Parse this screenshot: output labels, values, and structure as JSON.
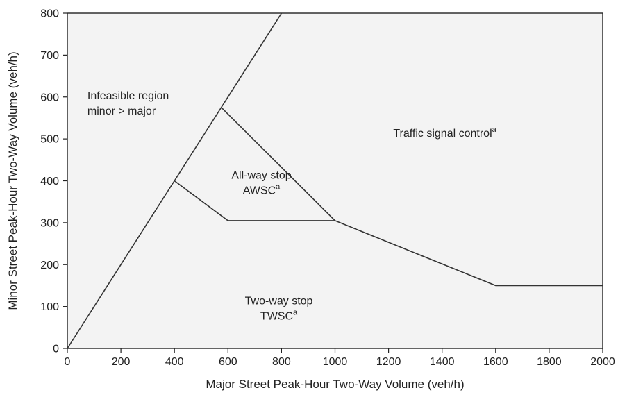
{
  "chart_data": {
    "type": "line",
    "xlabel": "Major Street Peak-Hour Two-Way Volume (veh/h)",
    "ylabel": "Minor Street Peak-Hour Two-Way Volume (veh/h)",
    "xlim": [
      0,
      2000
    ],
    "ylim": [
      0,
      800
    ],
    "x_ticks": [
      0,
      200,
      400,
      600,
      800,
      1000,
      1200,
      1400,
      1600,
      1800,
      2000
    ],
    "y_ticks": [
      0,
      100,
      200,
      300,
      400,
      500,
      600,
      700,
      800
    ],
    "grid": false,
    "plot_background": "#f3f3f3",
    "line_color": "#333333",
    "series": [
      {
        "x": [
          0,
          800
        ],
        "y": [
          0,
          800
        ]
      },
      {
        "x": [
          400,
          600,
          1000,
          1600,
          2000
        ],
        "y": [
          400,
          305,
          305,
          150,
          150
        ]
      },
      {
        "x": [
          575,
          1000
        ],
        "y": [
          575,
          305
        ]
      }
    ],
    "regions": [
      {
        "lines": [
          "Infeasible region",
          "minor > major"
        ],
        "superscript": "",
        "x": 75,
        "y": 595,
        "anchor": "start"
      },
      {
        "lines": [
          "Traffic signal control"
        ],
        "superscript": "a",
        "x": 1410,
        "y": 505,
        "anchor": "middle"
      },
      {
        "lines": [
          "All-way stop",
          "AWSC"
        ],
        "superscript": "a",
        "x": 725,
        "y": 405,
        "anchor": "middle"
      },
      {
        "lines": [
          "Two-way stop",
          "TWSC"
        ],
        "superscript": "a",
        "x": 790,
        "y": 105,
        "anchor": "middle"
      }
    ]
  }
}
